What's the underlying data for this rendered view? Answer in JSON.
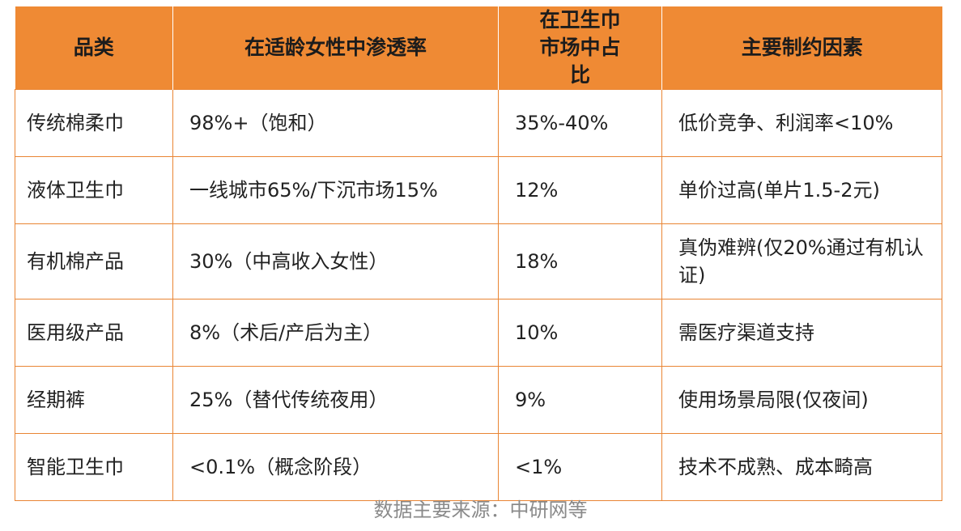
{
  "table": {
    "headers": [
      "品类",
      "在适龄女性中渗透率",
      "在卫生巾市场中占比",
      "主要制约因素"
    ],
    "rows": [
      [
        "传统棉柔巾",
        "98%+（饱和）",
        "35%-40%",
        "低价竞争、利润率<10%"
      ],
      [
        "液体卫生巾",
        "一线城市65%/下沉市场15%",
        "12%",
        "单价过高(单片1.5-2元)"
      ],
      [
        "有机棉产品",
        "30%（中高收入女性）",
        "18%",
        "真伪难辨(仅20%通过有机认证)"
      ],
      [
        "医用级产品",
        "8%（术后/产后为主）",
        "10%",
        "需医疗渠道支持"
      ],
      [
        "经期裤",
        "25%（替代传统夜用）",
        "9%",
        "使用场景局限(仅夜间)"
      ],
      [
        "智能卫生巾",
        "<0.1%（概念阶段）",
        "<1%",
        "技术不成熟、成本畸高"
      ]
    ]
  },
  "source": "数据主要来源：中研网等",
  "colors": {
    "header_bg": "#ef8a34",
    "border": "#e98534",
    "source_text": "#8a8a8a"
  }
}
